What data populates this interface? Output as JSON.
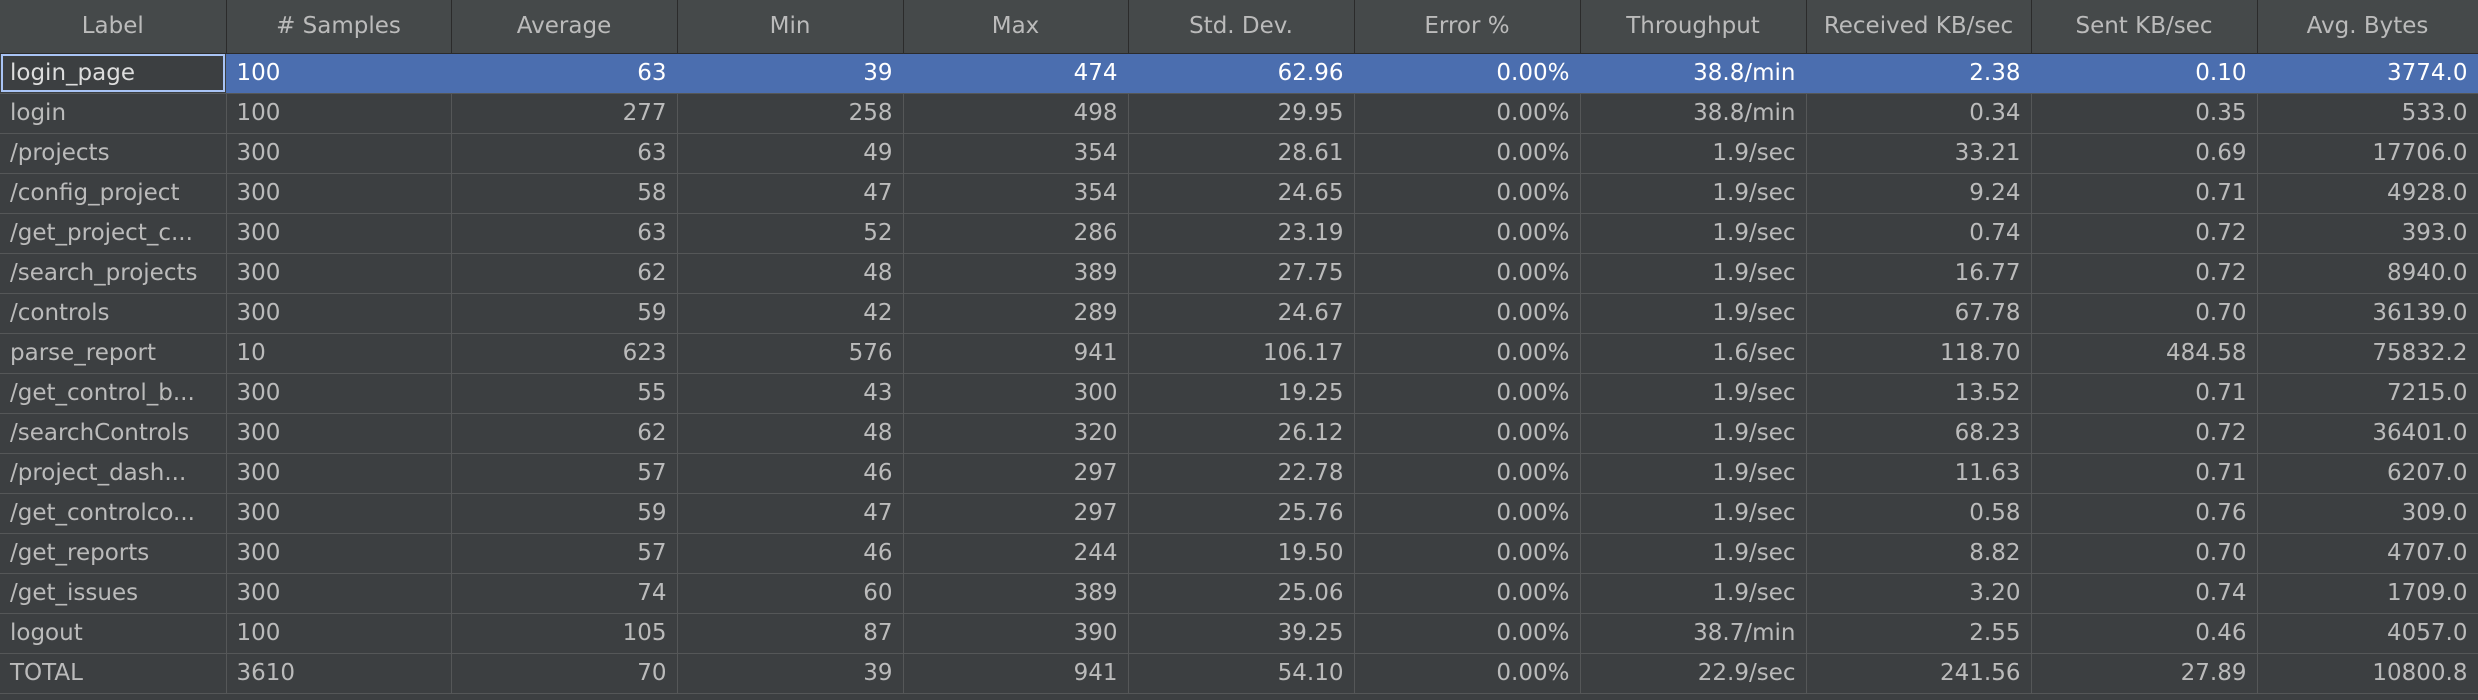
{
  "table": {
    "columns": [
      "Label",
      "# Samples",
      "Average",
      "Min",
      "Max",
      "Std. Dev.",
      "Error %",
      "Throughput",
      "Received KB/sec",
      "Sent KB/sec",
      "Avg. Bytes"
    ],
    "selected_row": 0,
    "rows": [
      [
        "login_page",
        "100",
        "63",
        "39",
        "474",
        "62.96",
        "0.00%",
        "38.8/min",
        "2.38",
        "0.10",
        "3774.0"
      ],
      [
        "login",
        "100",
        "277",
        "258",
        "498",
        "29.95",
        "0.00%",
        "38.8/min",
        "0.34",
        "0.35",
        "533.0"
      ],
      [
        "/projects",
        "300",
        "63",
        "49",
        "354",
        "28.61",
        "0.00%",
        "1.9/sec",
        "33.21",
        "0.69",
        "17706.0"
      ],
      [
        "/config_project",
        "300",
        "58",
        "47",
        "354",
        "24.65",
        "0.00%",
        "1.9/sec",
        "9.24",
        "0.71",
        "4928.0"
      ],
      [
        "/get_project_c...",
        "300",
        "63",
        "52",
        "286",
        "23.19",
        "0.00%",
        "1.9/sec",
        "0.74",
        "0.72",
        "393.0"
      ],
      [
        "/search_projects",
        "300",
        "62",
        "48",
        "389",
        "27.75",
        "0.00%",
        "1.9/sec",
        "16.77",
        "0.72",
        "8940.0"
      ],
      [
        "/controls",
        "300",
        "59",
        "42",
        "289",
        "24.67",
        "0.00%",
        "1.9/sec",
        "67.78",
        "0.70",
        "36139.0"
      ],
      [
        "parse_report",
        "10",
        "623",
        "576",
        "941",
        "106.17",
        "0.00%",
        "1.6/sec",
        "118.70",
        "484.58",
        "75832.2"
      ],
      [
        "/get_control_b...",
        "300",
        "55",
        "43",
        "300",
        "19.25",
        "0.00%",
        "1.9/sec",
        "13.52",
        "0.71",
        "7215.0"
      ],
      [
        "/searchControls",
        "300",
        "62",
        "48",
        "320",
        "26.12",
        "0.00%",
        "1.9/sec",
        "68.23",
        "0.72",
        "36401.0"
      ],
      [
        "/project_dash...",
        "300",
        "57",
        "46",
        "297",
        "22.78",
        "0.00%",
        "1.9/sec",
        "11.63",
        "0.71",
        "6207.0"
      ],
      [
        "/get_controlco...",
        "300",
        "59",
        "47",
        "297",
        "25.76",
        "0.00%",
        "1.9/sec",
        "0.58",
        "0.76",
        "309.0"
      ],
      [
        "/get_reports",
        "300",
        "57",
        "46",
        "244",
        "19.50",
        "0.00%",
        "1.9/sec",
        "8.82",
        "0.70",
        "4707.0"
      ],
      [
        "/get_issues",
        "300",
        "74",
        "60",
        "389",
        "25.06",
        "0.00%",
        "1.9/sec",
        "3.20",
        "0.74",
        "1709.0"
      ],
      [
        "logout",
        "100",
        "105",
        "87",
        "390",
        "39.25",
        "0.00%",
        "38.7/min",
        "2.55",
        "0.46",
        "4057.0"
      ],
      [
        "TOTAL",
        "3610",
        "70",
        "39",
        "941",
        "54.10",
        "0.00%",
        "22.9/sec",
        "241.56",
        "27.89",
        "10800.8"
      ]
    ]
  }
}
